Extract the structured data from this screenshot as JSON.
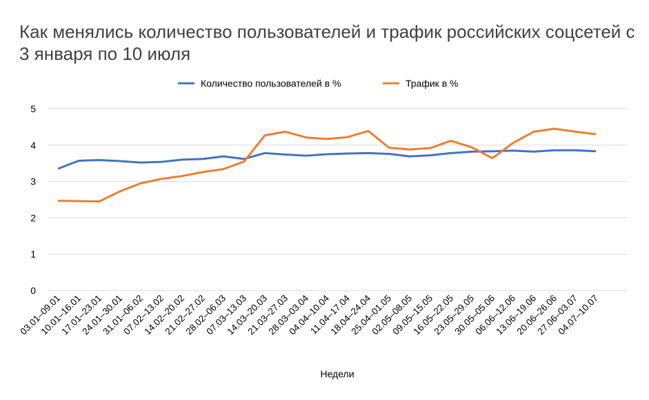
{
  "chart_data": {
    "type": "line",
    "title": "Как менялись количество пользователей и трафик российских соцсетей с 3 января по 10 июля",
    "xlabel": "Недели",
    "ylabel": "",
    "ylim": [
      0,
      5
    ],
    "yticks": [
      "0",
      "1",
      "2",
      "3",
      "4",
      "5"
    ],
    "grid": true,
    "legend_position": "top",
    "categories": [
      "03.01–09.01",
      "10.01–16.01",
      "17.01–23.01",
      "24.01–30.01",
      "31.01–06.02",
      "07.02–13.02",
      "14.02–20.02",
      "21.02–27.02",
      "28.02–06.03",
      "07.03–13.03",
      "14.03–20.03",
      "21.03–27.03",
      "28.03–03.04",
      "04.04–10.04",
      "11.04–17.04",
      "18.04–24.04",
      "25.04–01.05",
      "02.05–08.05",
      "09.05–15.05",
      "16.05–22.05",
      "23.05–29.05",
      "30.05–05.06",
      "06.06–12.06",
      "13.06–19.06",
      "20.06–26.06",
      "27.06–03.07",
      "04.07–10.07"
    ],
    "series": [
      {
        "name": "Количество пользователей в %",
        "color": "#4472C4",
        "values": [
          3.35,
          3.57,
          3.59,
          3.56,
          3.52,
          3.54,
          3.6,
          3.62,
          3.69,
          3.62,
          3.78,
          3.74,
          3.71,
          3.75,
          3.77,
          3.78,
          3.76,
          3.69,
          3.72,
          3.78,
          3.82,
          3.83,
          3.85,
          3.82,
          3.86,
          3.86,
          3.83
        ]
      },
      {
        "name": "Трафик в %",
        "color": "#ED7D31",
        "values": [
          2.47,
          2.46,
          2.45,
          2.73,
          2.95,
          3.07,
          3.15,
          3.26,
          3.34,
          3.55,
          4.27,
          4.37,
          4.21,
          4.17,
          4.22,
          4.39,
          3.93,
          3.88,
          3.92,
          4.12,
          3.94,
          3.64,
          4.06,
          4.37,
          4.45,
          4.37,
          4.3
        ]
      }
    ]
  }
}
